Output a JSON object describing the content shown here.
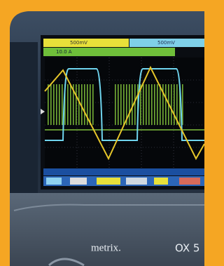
{
  "screen": {
    "ch1_label": "500mV",
    "ch2_label": "500mV",
    "ch3_label": "10.0 A"
  },
  "device": {
    "brand": "metrix.",
    "model": "OX 5"
  }
}
